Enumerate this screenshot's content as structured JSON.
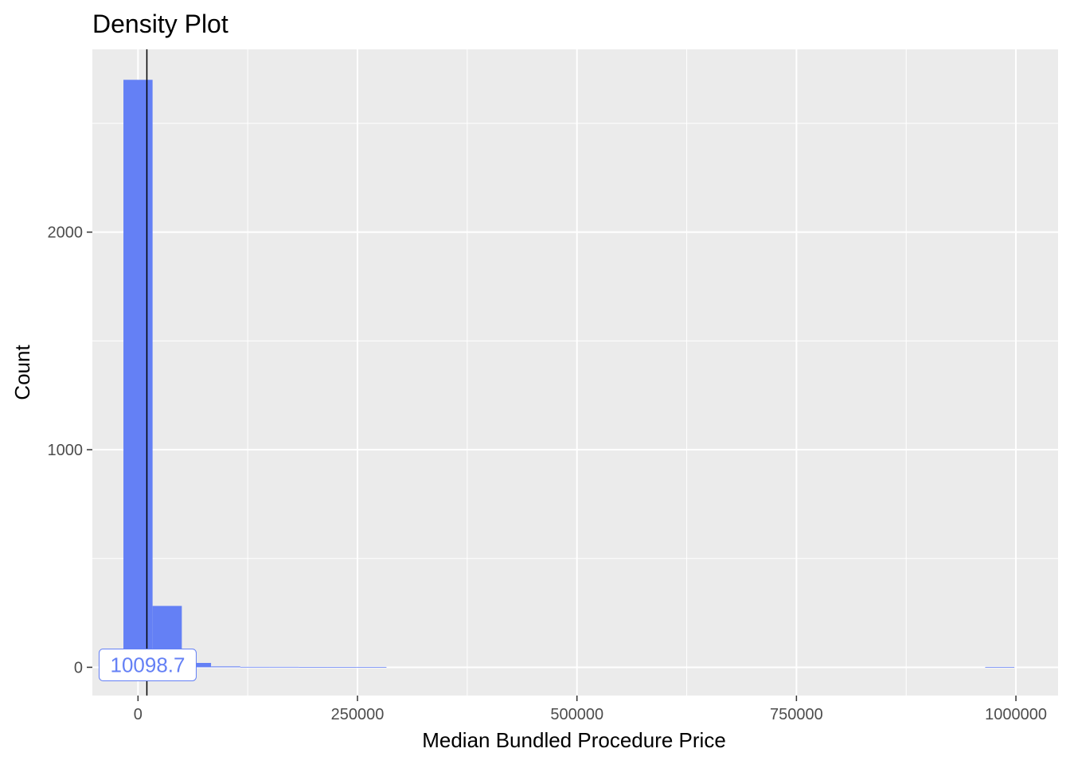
{
  "chart_data": {
    "type": "bar",
    "title": "Density Plot",
    "xlabel": "Median Bundled Procedure Price",
    "ylabel": "Count",
    "xlim": [
      -52000,
      1048000
    ],
    "ylim": [
      -130,
      2840
    ],
    "x_ticks": [
      {
        "value": 0,
        "label": "0"
      },
      {
        "value": 250000,
        "label": "250000"
      },
      {
        "value": 500000,
        "label": "500000"
      },
      {
        "value": 750000,
        "label": "750000"
      },
      {
        "value": 1000000,
        "label": "1000000"
      }
    ],
    "y_ticks": [
      {
        "value": 0,
        "label": "0"
      },
      {
        "value": 1000,
        "label": "1000"
      },
      {
        "value": 2000,
        "label": "2000"
      }
    ],
    "x_minor_gridlines": [
      -125000,
      125000,
      375000,
      625000,
      875000
    ],
    "y_minor_gridlines": [
      500,
      1500,
      2500
    ],
    "bins": [
      {
        "x0": -16600,
        "x1": 16600,
        "count": 2700
      },
      {
        "x0": 16600,
        "x1": 49900,
        "count": 282
      },
      {
        "x0": 49900,
        "x1": 83200,
        "count": 20
      },
      {
        "x0": 83200,
        "x1": 116500,
        "count": 4
      },
      {
        "x0": 116500,
        "x1": 149800,
        "count": 2
      },
      {
        "x0": 149800,
        "x1": 183100,
        "count": 2
      },
      {
        "x0": 183100,
        "x1": 216400,
        "count": 1
      },
      {
        "x0": 216400,
        "x1": 249700,
        "count": 1
      },
      {
        "x0": 249700,
        "x1": 283000,
        "count": 1
      },
      {
        "x0": 965000,
        "x1": 998300,
        "count": 1
      }
    ],
    "vline": {
      "x": 10098.7,
      "label": "10098.7"
    },
    "grid": true,
    "bar_color": "#6480f5",
    "panel_background": "#ebebeb",
    "gridline_color": "#ffffff",
    "vline_color": "#000000",
    "label_color": "#6480f5"
  }
}
